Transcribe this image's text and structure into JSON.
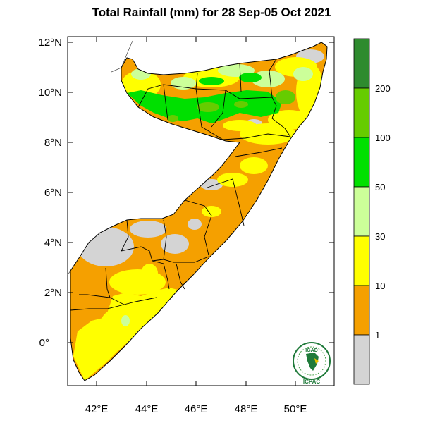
{
  "title": "Total Rainfall (mm) for 28 Sep-05 Oct 2021",
  "lat_ticks": [
    "12°N",
    "10°N",
    "8°N",
    "6°N",
    "4°N",
    "2°N",
    "0°"
  ],
  "lon_ticks": [
    "42°E",
    "44°E",
    "46°E",
    "48°E",
    "50°E"
  ],
  "colorbar": {
    "labels": [
      "200",
      "100",
      "50",
      "30",
      "10",
      "1"
    ],
    "bins": [
      {
        "range": "<1",
        "color": "#d4d4d4"
      },
      {
        "range": "1-10",
        "color": "#f5a000"
      },
      {
        "range": "10-30",
        "color": "#ffff00"
      },
      {
        "range": "30-50",
        "color": "#ccff99"
      },
      {
        "range": "50-100",
        "color": "#00e000"
      },
      {
        "range": "100-200",
        "color": "#66cc00"
      },
      {
        "range": ">200",
        "color": "#2e8b2e"
      }
    ]
  },
  "logo": {
    "top": "IGAD",
    "bottom": "ICPAC"
  }
}
